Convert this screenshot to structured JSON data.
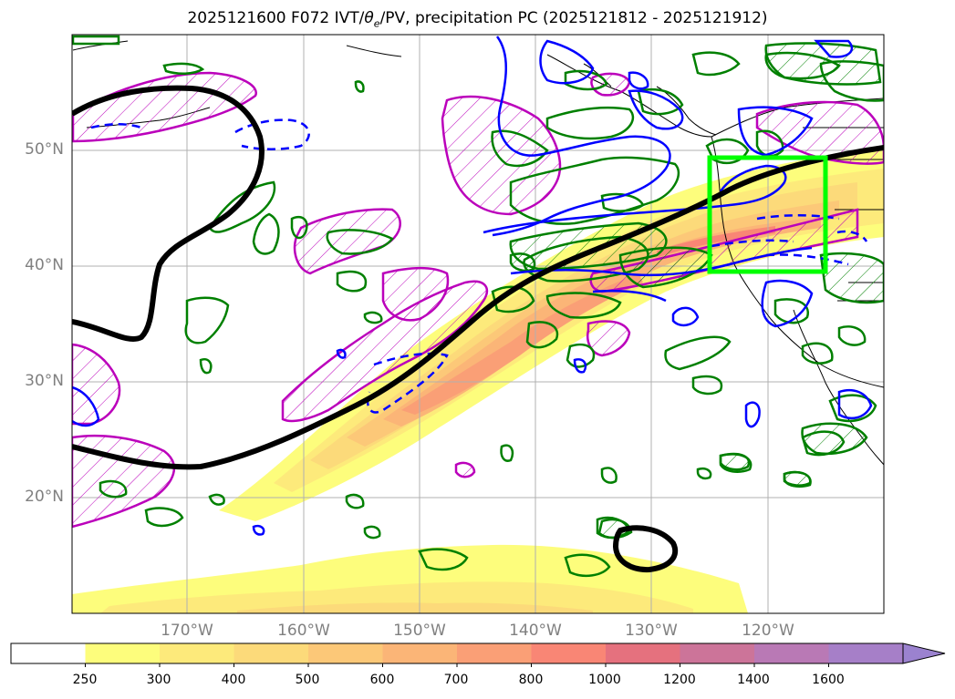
{
  "title": {
    "prefix": "2025121600 F072 IVT/",
    "theta": "θ",
    "sub": "e",
    "suffix": "/PV, precipitation PC (2025121812 - 2025121912)"
  },
  "lat_labels": [
    "50°N",
    "40°N",
    "30°N",
    "20°N"
  ],
  "lon_labels": [
    "170°W",
    "160°W",
    "150°W",
    "140°W",
    "130°W",
    "120°W"
  ],
  "colorbar": {
    "levels": [
      "250",
      "300",
      "400",
      "500",
      "600",
      "700",
      "800",
      "1000",
      "1200",
      "1400",
      "1600"
    ],
    "colors": [
      "#ffffff",
      "#fdfd7c",
      "#fdea7b",
      "#fcda7a",
      "#fcc878",
      "#fbb577",
      "#fa9f76",
      "#f98675",
      "#e5717e",
      "#cc7499",
      "#b979b5",
      "#a67fc8",
      "#9b82cf"
    ]
  },
  "legend_colors": {
    "ivt_max": "#ff0000",
    "jet_axis": "#000000",
    "theta_e": "#008000",
    "pv_positive": "#bb00bb",
    "pv_lines": "#0000ff",
    "target_box": "#00ff00"
  },
  "map_data": {
    "lon_range": [
      -180,
      -110
    ],
    "lat_range": [
      10,
      60
    ],
    "target_box": {
      "lon": [
        -125,
        -115
      ],
      "lat": [
        39.5,
        49.5
      ]
    }
  }
}
